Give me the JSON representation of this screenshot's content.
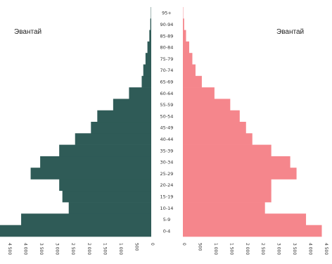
{
  "chart_data": {
    "type": "bar",
    "orientation": "horizontal-diverging",
    "title": "",
    "left_label": "Эвантай",
    "right_label": "Эвантай",
    "categories": [
      "0-4",
      "5-9",
      "10-14",
      "15-19",
      "20-24",
      "25-29",
      "30-34",
      "35-39",
      "40-44",
      "45-49",
      "50-54",
      "55-59",
      "60-64",
      "65-69",
      "70-74",
      "75-79",
      "80-84",
      "85-89",
      "90-94",
      "95+"
    ],
    "series": [
      {
        "values": [
          4800,
          4100,
          2600,
          2800,
          2900,
          3800,
          3500,
          2900,
          2400,
          1900,
          1700,
          1200,
          700,
          300,
          250,
          180,
          120,
          60,
          30,
          10
        ]
      },
      {
        "values": [
          4400,
          3900,
          2600,
          2800,
          2800,
          3600,
          3400,
          2800,
          2200,
          2000,
          1800,
          1500,
          1000,
          600,
          400,
          300,
          200,
          100,
          40,
          10
        ]
      }
    ],
    "left_ticks": [
      "4 500",
      "4 000",
      "3 500",
      "3 000",
      "2 500",
      "2 000",
      "1 500",
      "1 000",
      "500",
      "0"
    ],
    "right_ticks": [
      "0",
      "500",
      "1 000",
      "1 500",
      "2 000",
      "2 500",
      "3 000",
      "3 500",
      "4 000",
      "4 500"
    ],
    "xlim": [
      0,
      4500
    ],
    "colors": {
      "left": "#2f5b57",
      "right": "#f5868c"
    },
    "grid": false,
    "legend": "none"
  }
}
